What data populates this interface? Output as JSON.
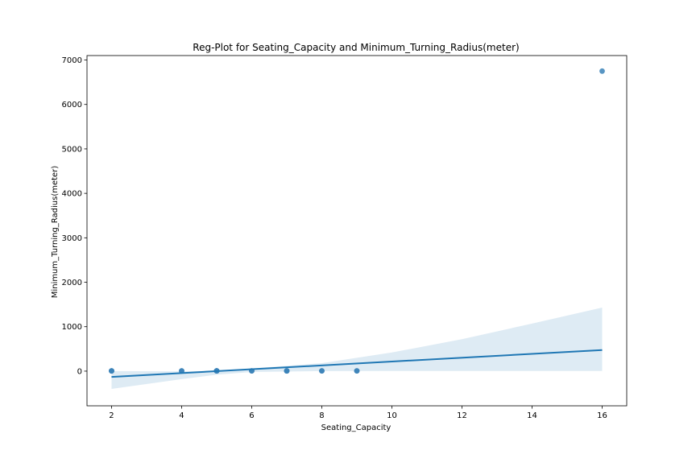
{
  "chart_data": {
    "type": "scatter",
    "title": "Reg-Plot for Seating_Capacity and Minimum_Turning_Radius(meter)",
    "xlabel": "Seating_Capacity",
    "ylabel": "Minimum_Turning_Radius(meter)",
    "xlim": [
      1.3,
      16.7
    ],
    "ylim": [
      -780,
      7100
    ],
    "xticks": [
      2,
      4,
      6,
      8,
      10,
      12,
      14,
      16
    ],
    "yticks": [
      0,
      1000,
      2000,
      3000,
      4000,
      5000,
      6000,
      7000
    ],
    "xtick_labels": [
      "2",
      "4",
      "6",
      "8",
      "10",
      "12",
      "14",
      "16"
    ],
    "ytick_labels": [
      "0",
      "1000",
      "2000",
      "3000",
      "4000",
      "5000",
      "6000",
      "7000"
    ],
    "points": [
      {
        "x": 2,
        "y": 5
      },
      {
        "x": 2,
        "y": 6
      },
      {
        "x": 2,
        "y": 5.5
      },
      {
        "x": 4,
        "y": 5.2
      },
      {
        "x": 4,
        "y": 5.5
      },
      {
        "x": 5,
        "y": 5
      },
      {
        "x": 5,
        "y": 5.3
      },
      {
        "x": 5,
        "y": 5.6
      },
      {
        "x": 5,
        "y": 5.9
      },
      {
        "x": 5,
        "y": 6.2
      },
      {
        "x": 6,
        "y": 5.5
      },
      {
        "x": 6,
        "y": 5.8
      },
      {
        "x": 7,
        "y": 5.2
      },
      {
        "x": 7,
        "y": 5.6
      },
      {
        "x": 7,
        "y": 6
      },
      {
        "x": 8,
        "y": 5.5
      },
      {
        "x": 8,
        "y": 5.9
      },
      {
        "x": 9,
        "y": 5.6
      },
      {
        "x": 9,
        "y": 6
      },
      {
        "x": 16,
        "y": 6750
      }
    ],
    "regression_line": {
      "x": [
        2,
        16
      ],
      "y": [
        -130,
        475
      ]
    },
    "confidence_band": {
      "x": [
        2,
        4,
        5,
        6,
        8,
        10,
        12,
        14,
        16
      ],
      "upper": [
        0,
        -5,
        5,
        60,
        180,
        420,
        720,
        1070,
        1430
      ],
      "lower": [
        -400,
        -180,
        -80,
        -20,
        0,
        5,
        5,
        5,
        5
      ]
    },
    "colors": {
      "points": "#3b82b8",
      "line": "#1f77b4",
      "band": "#1f77b4"
    },
    "grid": false
  }
}
